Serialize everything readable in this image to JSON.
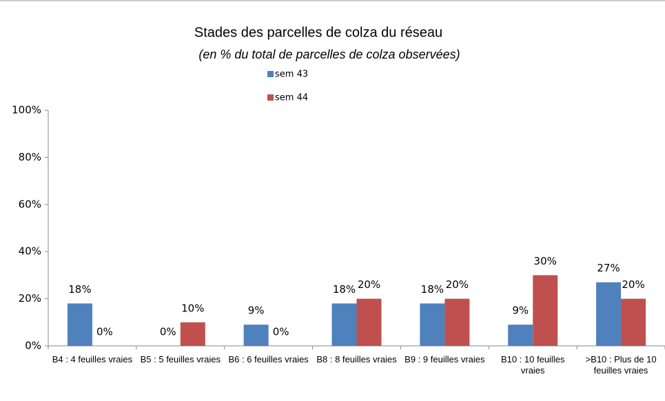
{
  "chart_data": {
    "type": "bar",
    "title": "Stades des parcelles de colza du réseau",
    "subtitle": "(en %  du total de parcelles de colza observées)",
    "categories": [
      "B4 : 4 feuilles vraies",
      "B5 : 5 feuilles vraies",
      "B6 : 6 feuilles vraies",
      "B8 : 8 feuilles vraies",
      "B9 : 9 feuilles vraies",
      "B10 : 10 feuilles vraies",
      ">B10 : Plus de 10 feuilles vraies"
    ],
    "series": [
      {
        "name": "sem 43",
        "color": "#4f81bd",
        "values": [
          18,
          0,
          9,
          18,
          18,
          9,
          27
        ],
        "value_labels": [
          "18%",
          "0%",
          "9%",
          "18%",
          "18%",
          "9%",
          "27%"
        ]
      },
      {
        "name": "sem 44",
        "color": "#c0504d",
        "values": [
          0,
          10,
          0,
          20,
          20,
          30,
          20
        ],
        "value_labels": [
          "0%",
          "10%",
          "0%",
          "20%",
          "20%",
          "30%",
          "20%"
        ]
      }
    ],
    "ylim": [
      0,
      100
    ],
    "yticks": [
      {
        "value": 0,
        "label": "0%"
      },
      {
        "value": 20,
        "label": "20%"
      },
      {
        "value": 40,
        "label": "40%"
      },
      {
        "value": 60,
        "label": "60%"
      },
      {
        "value": 80,
        "label": "80%"
      },
      {
        "value": 100,
        "label": "100%"
      }
    ]
  }
}
